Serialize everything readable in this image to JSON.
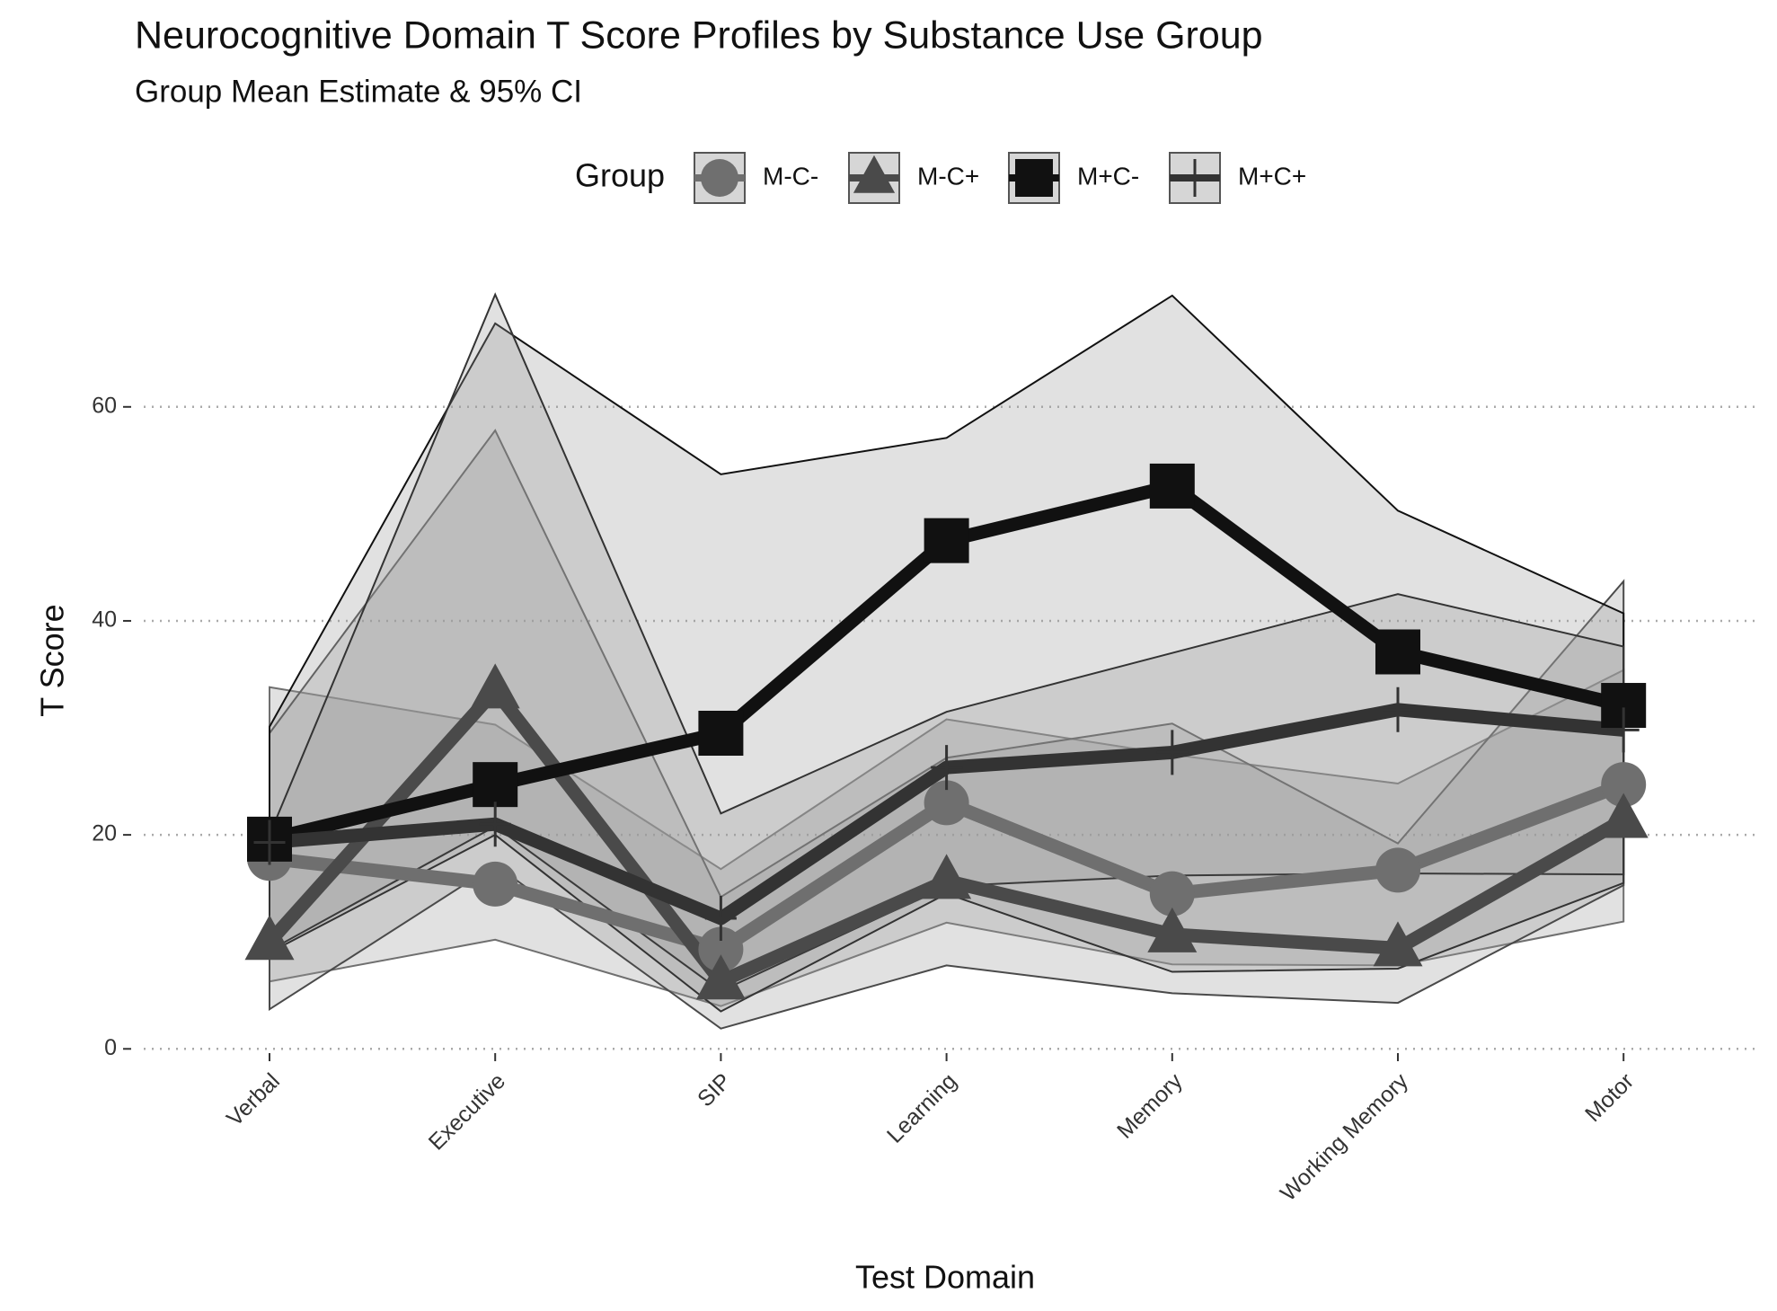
{
  "chart_data": {
    "type": "line",
    "title": "Neurocognitive Domain T Score Profiles by Substance Use Group",
    "subtitle": "Group Mean Estimate & 95% CI",
    "legend_title": "Group",
    "x_label": "Test Domain",
    "y_label": "T Score",
    "categories": [
      "Verbal",
      "Executive",
      "SIP",
      "Learning",
      "Memory",
      "Working Memory",
      "Motor"
    ],
    "ylim": [
      -3,
      73
    ],
    "yticks": [
      0,
      20,
      40,
      60
    ],
    "grid": true,
    "series": [
      {
        "name": "M-C-",
        "color": "#6f6f6f",
        "marker": "circle",
        "values": [
          17.8,
          15.4,
          9.3,
          23,
          14.5,
          16.7,
          24.7
        ],
        "lower": [
          6.3,
          10.2,
          4,
          11.8,
          7.9,
          7.8,
          11.9
        ],
        "upper": [
          33.8,
          30.3,
          16.8,
          30.8,
          27.5,
          24.8,
          35.4
        ]
      },
      {
        "name": "M-C+",
        "color": "#4a4a4a",
        "marker": "triangle",
        "values": [
          10,
          33.5,
          6.3,
          15.7,
          10.7,
          9.4,
          21.4
        ],
        "lower": [
          3.7,
          17.2,
          1.9,
          7.8,
          5.2,
          4.3,
          15.3
        ],
        "upper": [
          29.5,
          57.8,
          14.2,
          27.2,
          30.4,
          19.2,
          43.7
        ]
      },
      {
        "name": "M+C-",
        "color": "#111111",
        "marker": "square",
        "values": [
          19.6,
          24.7,
          29.5,
          47.5,
          52.6,
          37.1,
          32.1
        ],
        "lower": [
          9.2,
          20.8,
          5.4,
          15.2,
          16.2,
          16.4,
          16.3
        ],
        "upper": [
          30.1,
          67.8,
          53.7,
          57.1,
          70.4,
          50.3,
          40.7
        ]
      },
      {
        "name": "M+C+",
        "color": "#333333",
        "marker": "crossbar",
        "values": [
          19.3,
          21,
          12.2,
          26.3,
          27.7,
          31.7,
          29.8
        ],
        "lower": [
          9,
          20,
          3.5,
          14.5,
          7.2,
          7.5,
          15.5
        ],
        "upper": [
          20,
          70.5,
          22,
          31.5,
          37,
          42.5,
          37.6
        ]
      }
    ]
  }
}
